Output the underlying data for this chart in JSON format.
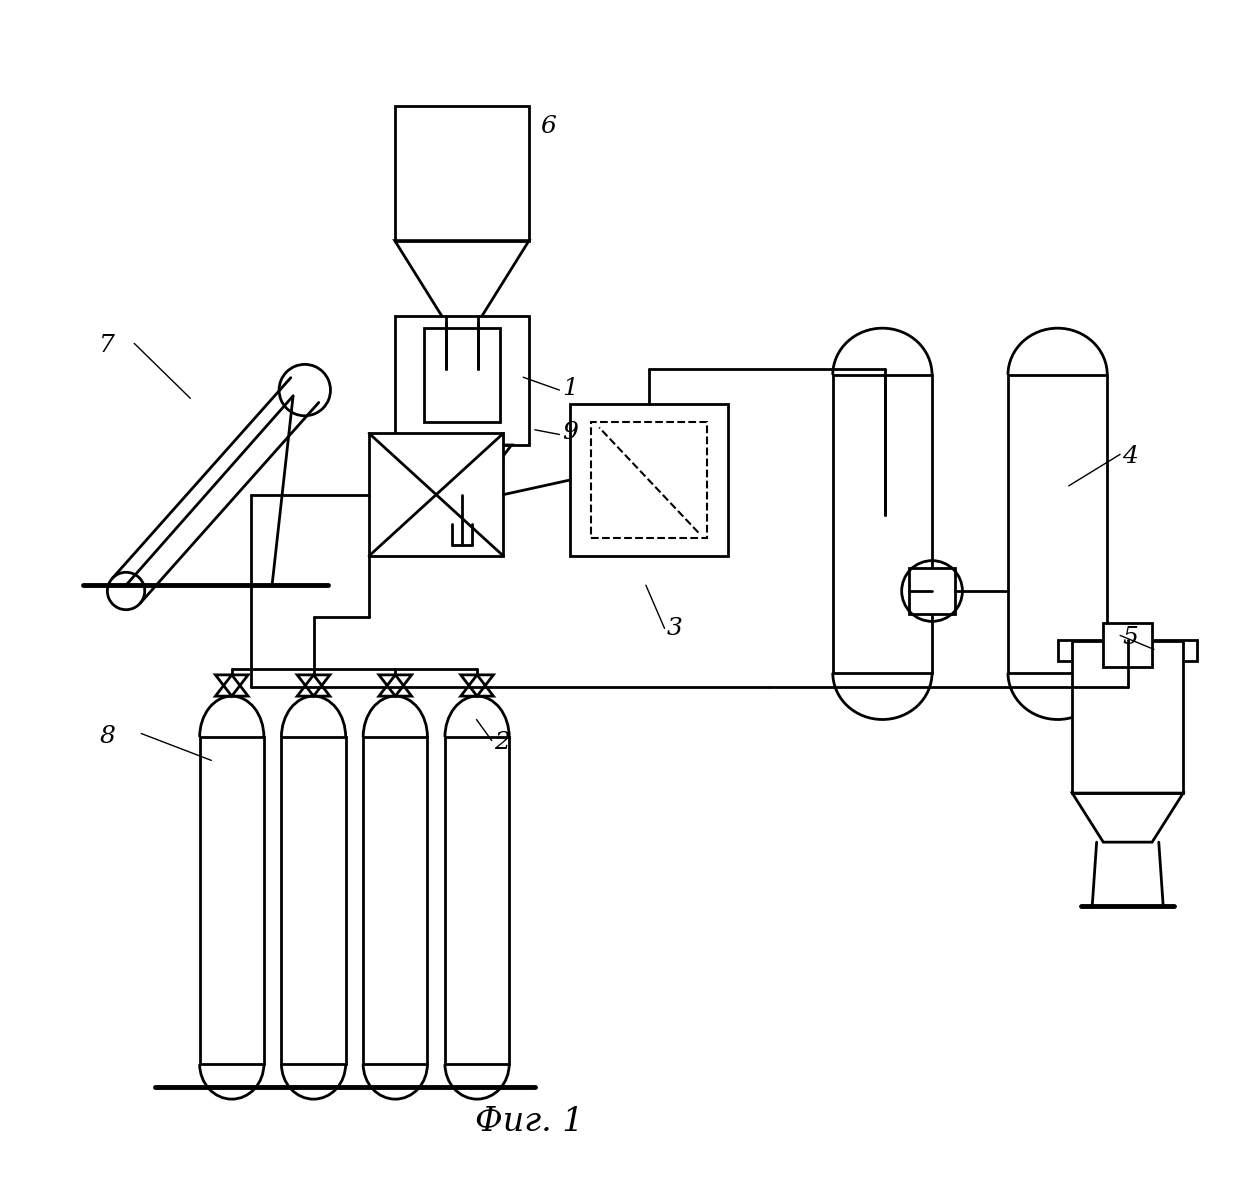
{
  "bg_color": "#ffffff",
  "line_color": "#000000",
  "line_width": 2.0,
  "fig_label": "Фиг. 1"
}
